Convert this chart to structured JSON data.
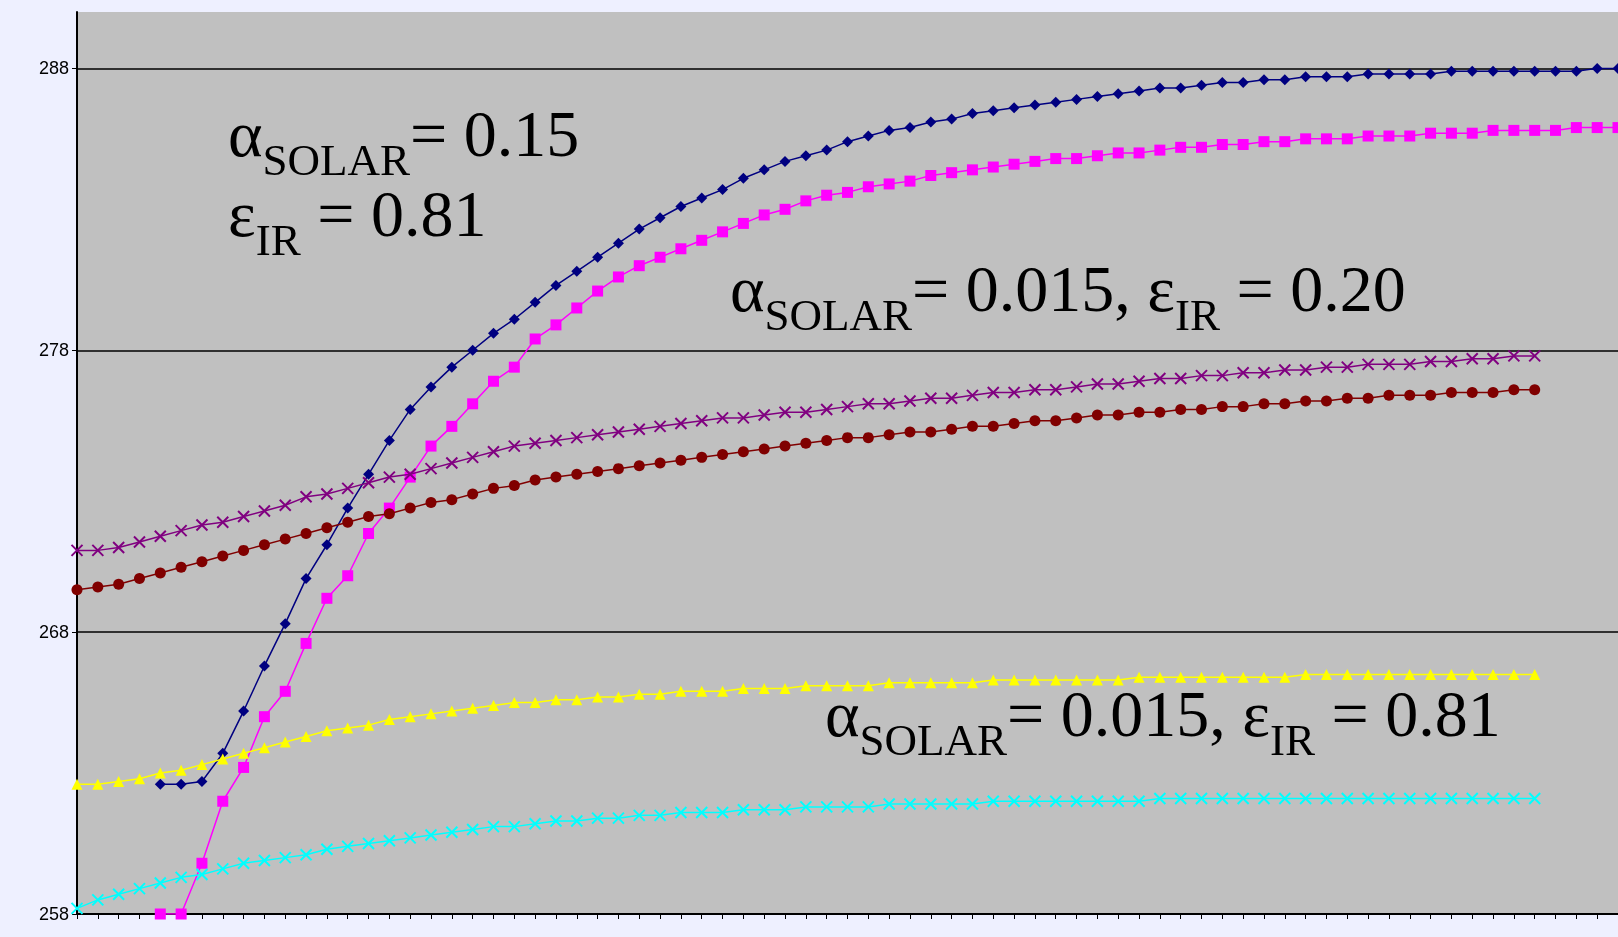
{
  "chart_data": {
    "type": "line",
    "categories": [
      null,
      null,
      null,
      null,
      null,
      null,
      null,
      null,
      null,
      null,
      null,
      null,
      null,
      null,
      null,
      null,
      null,
      null,
      null,
      null,
      null,
      null,
      null,
      null,
      null,
      null,
      null,
      null,
      null,
      null,
      null,
      null,
      null,
      null,
      null,
      null,
      null,
      null,
      null,
      null,
      null,
      null,
      null,
      null,
      null,
      null,
      null,
      null,
      null,
      null,
      null,
      null,
      null,
      null,
      null,
      null,
      null,
      null,
      null,
      null,
      null,
      null,
      null,
      null,
      null,
      null,
      null,
      null,
      null,
      null,
      null,
      null,
      null,
      null,
      null
    ],
    "ylim": [
      258,
      290
    ],
    "yticks": [
      258,
      268,
      278,
      288
    ],
    "grid": "y",
    "tick_labels": "y",
    "annotations": [
      "α$_{SOLAR}$= 0.15",
      "ε$_{IR}$ = 0.81",
      "α$_{SOLAR}$= 0.015, ε$_{IR}$ = 0.20",
      "α$_{SOLAR}$= 0.015, ε$_{IR}$ = 0.81"
    ],
    "series": [
      {
        "color": "#000080",
        "marker": "diamond",
        "values": [
          null,
          null,
          null,
          null,
          262.6,
          262.6,
          262.7,
          263.7,
          265.2,
          266.8,
          268.3,
          269.9,
          271.1,
          272.4,
          273.6,
          274.8,
          275.9,
          276.7,
          277.4,
          278.0,
          278.6,
          279.1,
          279.7,
          280.3,
          280.8,
          281.3,
          281.8,
          282.3,
          282.7,
          283.1,
          283.4,
          283.7,
          284.1,
          284.4,
          284.7,
          284.9,
          285.1,
          285.4,
          285.6,
          285.8,
          285.9,
          286.1,
          286.2,
          286.4,
          286.5,
          286.6,
          286.7,
          286.8,
          286.9,
          287.0,
          287.1,
          287.2,
          287.3,
          287.3,
          287.4,
          287.5,
          287.5,
          287.6,
          287.6,
          287.7,
          287.7,
          287.7,
          287.8,
          287.8,
          287.8,
          287.8,
          287.9,
          287.9,
          287.9,
          287.9,
          287.9,
          287.9,
          287.9,
          288.0,
          288.0
        ]
      },
      {
        "color": "#ff00ff",
        "marker": "square",
        "values": [
          null,
          null,
          null,
          null,
          258.0,
          258.0,
          259.8,
          262.0,
          263.2,
          265.0,
          265.9,
          267.6,
          269.2,
          270.0,
          271.5,
          272.4,
          273.5,
          274.6,
          275.3,
          276.1,
          276.9,
          277.4,
          278.4,
          278.9,
          279.5,
          280.1,
          280.6,
          281.0,
          281.3,
          281.6,
          281.9,
          282.2,
          282.5,
          282.8,
          283.0,
          283.3,
          283.5,
          283.6,
          283.8,
          283.9,
          284.0,
          284.2,
          284.3,
          284.4,
          284.5,
          284.6,
          284.7,
          284.8,
          284.8,
          284.9,
          285.0,
          285.0,
          285.1,
          285.2,
          285.2,
          285.3,
          285.3,
          285.4,
          285.4,
          285.5,
          285.5,
          285.5,
          285.6,
          285.6,
          285.6,
          285.7,
          285.7,
          285.7,
          285.8,
          285.8,
          285.8,
          285.8,
          285.9,
          285.9,
          285.9
        ]
      },
      {
        "color": "#800080",
        "marker": "cross",
        "values": [
          270.9,
          270.9,
          271.0,
          271.2,
          271.4,
          271.6,
          271.8,
          271.9,
          272.1,
          272.3,
          272.5,
          272.8,
          272.9,
          273.1,
          273.3,
          273.5,
          273.6,
          273.8,
          274.0,
          274.2,
          274.4,
          274.6,
          274.7,
          274.8,
          274.9,
          275.0,
          275.1,
          275.2,
          275.3,
          275.4,
          275.5,
          275.6,
          275.6,
          275.7,
          275.8,
          275.8,
          275.9,
          276.0,
          276.1,
          276.1,
          276.2,
          276.3,
          276.3,
          276.4,
          276.5,
          276.5,
          276.6,
          276.6,
          276.7,
          276.8,
          276.8,
          276.9,
          277.0,
          277.0,
          277.1,
          277.1,
          277.2,
          277.2,
          277.3,
          277.3,
          277.4,
          277.4,
          277.5,
          277.5,
          277.5,
          277.6,
          277.6,
          277.7,
          277.7,
          277.8,
          277.8,
          null,
          null,
          null,
          null
        ]
      },
      {
        "color": "#800000",
        "marker": "circle",
        "values": [
          269.5,
          269.6,
          269.7,
          269.9,
          270.1,
          270.3,
          270.5,
          270.7,
          270.9,
          271.1,
          271.3,
          271.5,
          271.7,
          271.9,
          272.1,
          272.2,
          272.4,
          272.6,
          272.7,
          272.9,
          273.1,
          273.2,
          273.4,
          273.5,
          273.6,
          273.7,
          273.8,
          273.9,
          274.0,
          274.1,
          274.2,
          274.3,
          274.4,
          274.5,
          274.6,
          274.7,
          274.8,
          274.9,
          274.9,
          275.0,
          275.1,
          275.1,
          275.2,
          275.3,
          275.3,
          275.4,
          275.5,
          275.5,
          275.6,
          275.7,
          275.7,
          275.8,
          275.8,
          275.9,
          275.9,
          276.0,
          276.0,
          276.1,
          276.1,
          276.2,
          276.2,
          276.3,
          276.3,
          276.4,
          276.4,
          276.4,
          276.5,
          276.5,
          276.5,
          276.6,
          276.6,
          null,
          null,
          null,
          null
        ]
      },
      {
        "color": "#ffff00",
        "marker": "triangle",
        "values": [
          262.6,
          262.6,
          262.7,
          262.8,
          263.0,
          263.1,
          263.3,
          263.5,
          263.7,
          263.9,
          264.1,
          264.3,
          264.5,
          264.6,
          264.7,
          264.9,
          265.0,
          265.1,
          265.2,
          265.3,
          265.4,
          265.5,
          265.5,
          265.6,
          265.6,
          265.7,
          265.7,
          265.8,
          265.8,
          265.9,
          265.9,
          265.9,
          266.0,
          266.0,
          266.0,
          266.1,
          266.1,
          266.1,
          266.1,
          266.2,
          266.2,
          266.2,
          266.2,
          266.2,
          266.3,
          266.3,
          266.3,
          266.3,
          266.3,
          266.3,
          266.3,
          266.4,
          266.4,
          266.4,
          266.4,
          266.4,
          266.4,
          266.4,
          266.4,
          266.5,
          266.5,
          266.5,
          266.5,
          266.5,
          266.5,
          266.5,
          266.5,
          266.5,
          266.5,
          266.5,
          266.5,
          null,
          null,
          null,
          null
        ]
      },
      {
        "color": "#00ffff",
        "marker": "cross",
        "values": [
          258.2,
          258.5,
          258.7,
          258.9,
          259.1,
          259.3,
          259.4,
          259.6,
          259.8,
          259.9,
          260.0,
          260.1,
          260.3,
          260.4,
          260.5,
          260.6,
          260.7,
          260.8,
          260.9,
          261.0,
          261.1,
          261.1,
          261.2,
          261.3,
          261.3,
          261.4,
          261.4,
          261.5,
          261.5,
          261.6,
          261.6,
          261.6,
          261.7,
          261.7,
          261.7,
          261.8,
          261.8,
          261.8,
          261.8,
          261.9,
          261.9,
          261.9,
          261.9,
          261.9,
          262.0,
          262.0,
          262.0,
          262.0,
          262.0,
          262.0,
          262.0,
          262.0,
          262.1,
          262.1,
          262.1,
          262.1,
          262.1,
          262.1,
          262.1,
          262.1,
          262.1,
          262.1,
          262.1,
          262.1,
          262.1,
          262.1,
          262.1,
          262.1,
          262.1,
          262.1,
          262.1,
          null,
          null,
          null,
          null
        ]
      }
    ]
  }
}
